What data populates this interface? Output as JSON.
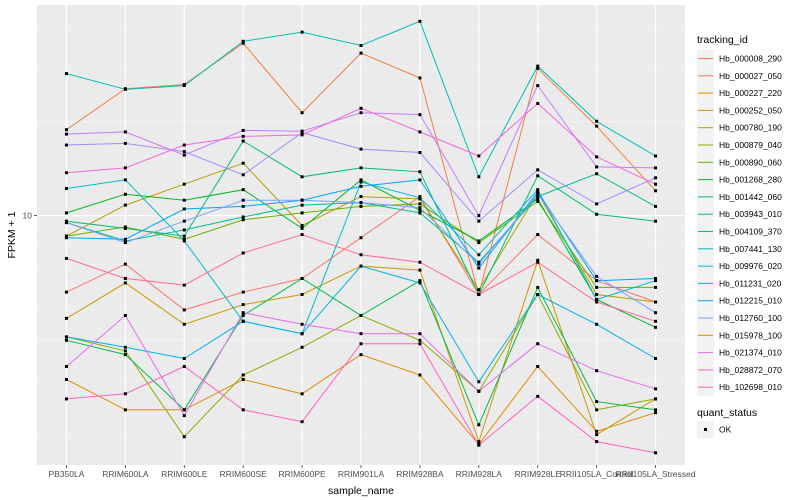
{
  "chart_data": {
    "type": "line",
    "xlabel": "sample_name",
    "ylabel": "FPKM + 1",
    "y_scale": "log10",
    "y_ticks": [
      10
    ],
    "y_tick_labels": [
      "10"
    ],
    "ylim": [
      1.6,
      47
    ],
    "grid": true,
    "legend": "right",
    "categories": [
      "PB350LA",
      "RRIM600LA",
      "RRIM600LE",
      "RRIM600SE",
      "RRIM600PE",
      "RRIM901LA",
      "RRIM928BA",
      "RRIM928LA",
      "RRIM928LE",
      "RRII105LA_Control",
      "RRII105LA_Stressed"
    ],
    "color_legend_title": "tracking_id",
    "shape_legend_title": "quant_status",
    "shape_legend_items": [
      {
        "label": "OK"
      }
    ],
    "series": [
      {
        "name": "Hb_000008_290",
        "color": "#F8766D",
        "values": [
          5.7,
          7.0,
          5.0,
          5.7,
          6.3,
          8.5,
          11.5,
          5.6,
          8.7,
          6.2,
          5.3
        ]
      },
      {
        "name": "Hb_000027_050",
        "color": "#EE8044",
        "values": [
          18.8,
          25.4,
          26.2,
          35.5,
          21.3,
          33.0,
          27.5,
          5.6,
          29.5,
          19.3,
          12.0
        ]
      },
      {
        "name": "Hb_000227_220",
        "color": "#DE8C00",
        "values": [
          3.0,
          2.4,
          2.4,
          3.0,
          2.7,
          3.6,
          3.1,
          1.86,
          3.3,
          2.05,
          2.35
        ]
      },
      {
        "name": "Hb_000252_050",
        "color": "#C99800",
        "values": [
          4.7,
          6.1,
          4.5,
          5.2,
          5.6,
          6.9,
          6.7,
          1.9,
          7.2,
          2.0,
          2.6
        ]
      },
      {
        "name": "Hb_000780_190",
        "color": "#B1A000",
        "values": [
          8.6,
          10.8,
          12.6,
          14.7,
          9.3,
          11.5,
          11.3,
          5.8,
          11.8,
          5.6,
          5.3
        ]
      },
      {
        "name": "Hb_000879_040",
        "color": "#93AA00",
        "values": [
          4.1,
          3.7,
          1.97,
          3.1,
          3.8,
          4.8,
          4.0,
          2.75,
          5.6,
          2.4,
          2.6
        ]
      },
      {
        "name": "Hb_000890_060",
        "color": "#68B100",
        "values": [
          8.6,
          9.2,
          8.4,
          9.7,
          10.2,
          10.7,
          10.9,
          8.2,
          11.1,
          5.9,
          5.9
        ]
      },
      {
        "name": "Hb_001268_280",
        "color": "#00B81F",
        "values": [
          10.2,
          11.7,
          11.2,
          12.1,
          9.1,
          13.0,
          10.4,
          8.3,
          11.3,
          5.4,
          4.4
        ]
      },
      {
        "name": "Hb_001442_060",
        "color": "#00BB4B",
        "values": [
          4.0,
          3.6,
          2.4,
          4.8,
          6.3,
          4.8,
          6.2,
          2.15,
          5.9,
          2.55,
          2.4
        ]
      },
      {
        "name": "Hb_003943_010",
        "color": "#00BE70",
        "values": [
          9.6,
          9.1,
          8.6,
          17.3,
          13.3,
          14.2,
          13.8,
          5.6,
          13.4,
          10.1,
          9.6
        ]
      },
      {
        "name": "Hb_004109_370",
        "color": "#00C094",
        "values": [
          9.5,
          8.3,
          9.0,
          9.9,
          10.8,
          11.0,
          10.2,
          7.1,
          11.5,
          13.6,
          10.7
        ]
      },
      {
        "name": "Hb_007441_130",
        "color": "#00BFB7",
        "values": [
          28.4,
          25.3,
          26.0,
          36.0,
          38.5,
          34.9,
          41.7,
          13.3,
          30.0,
          20.0,
          15.5
        ]
      },
      {
        "name": "Hb_009976_020",
        "color": "#00BBD4",
        "values": [
          12.2,
          13.0,
          8.3,
          4.6,
          4.2,
          12.8,
          11.4,
          7.5,
          12.1,
          5.4,
          6.2
        ]
      },
      {
        "name": "Hb_011231_020",
        "color": "#00B1EB",
        "values": [
          4.1,
          3.8,
          3.5,
          4.6,
          4.2,
          6.9,
          6.1,
          2.95,
          5.6,
          4.5,
          3.5
        ]
      },
      {
        "name": "Hb_012215_010",
        "color": "#00A5FF",
        "values": [
          8.5,
          8.4,
          10.5,
          10.7,
          11.2,
          12.4,
          13.0,
          6.8,
          11.9,
          6.2,
          6.3
        ]
      },
      {
        "name": "Hb_012760_100",
        "color": "#7B9FFF",
        "values": [
          9.5,
          8.2,
          9.6,
          11.2,
          11.2,
          11.0,
          10.6,
          7.0,
          11.7,
          6.4,
          4.9
        ]
      },
      {
        "name": "Hb_015978_100",
        "color": "#D39200",
        "values": [
          0,
          0,
          0,
          0,
          0,
          0,
          0,
          0,
          0,
          0,
          0
        ],
        "hidden": true
      },
      {
        "name": "Hb_021374_010",
        "color": "#E76BF3",
        "values": [
          3.3,
          4.8,
          2.3,
          4.9,
          4.5,
          4.2,
          4.2,
          2.75,
          3.9,
          3.2,
          2.8
        ]
      },
      {
        "name": "Hb_028872_070",
        "color": "#FF61C3",
        "values": [
          2.6,
          2.7,
          3.3,
          2.4,
          2.2,
          3.9,
          3.9,
          1.85,
          2.65,
          1.9,
          1.75
        ]
      },
      {
        "name": "Hb_102698_010",
        "color": "#FF6A98",
        "values": [
          7.3,
          6.3,
          6.0,
          7.6,
          8.7,
          7.5,
          7.1,
          5.6,
          7.1,
          5.3,
          4.6
        ]
      }
    ],
    "extra_series": [
      {
        "color": "#A58AFF",
        "values": [
          16.8,
          17.0,
          16.0,
          13.5,
          18.4,
          16.3,
          15.9,
          9.6,
          14.0,
          10.9,
          13.2
        ]
      },
      {
        "color": "#C77CFF",
        "values": [
          18.2,
          18.5,
          15.6,
          18.7,
          18.6,
          21.3,
          21.0,
          10.0,
          26.0,
          14.3,
          14.2
        ]
      },
      {
        "color": "#F564E3",
        "values": [
          13.7,
          14.2,
          16.8,
          17.9,
          18.1,
          22.0,
          18.5,
          15.5,
          22.8,
          15.4,
          12.6
        ]
      }
    ]
  }
}
